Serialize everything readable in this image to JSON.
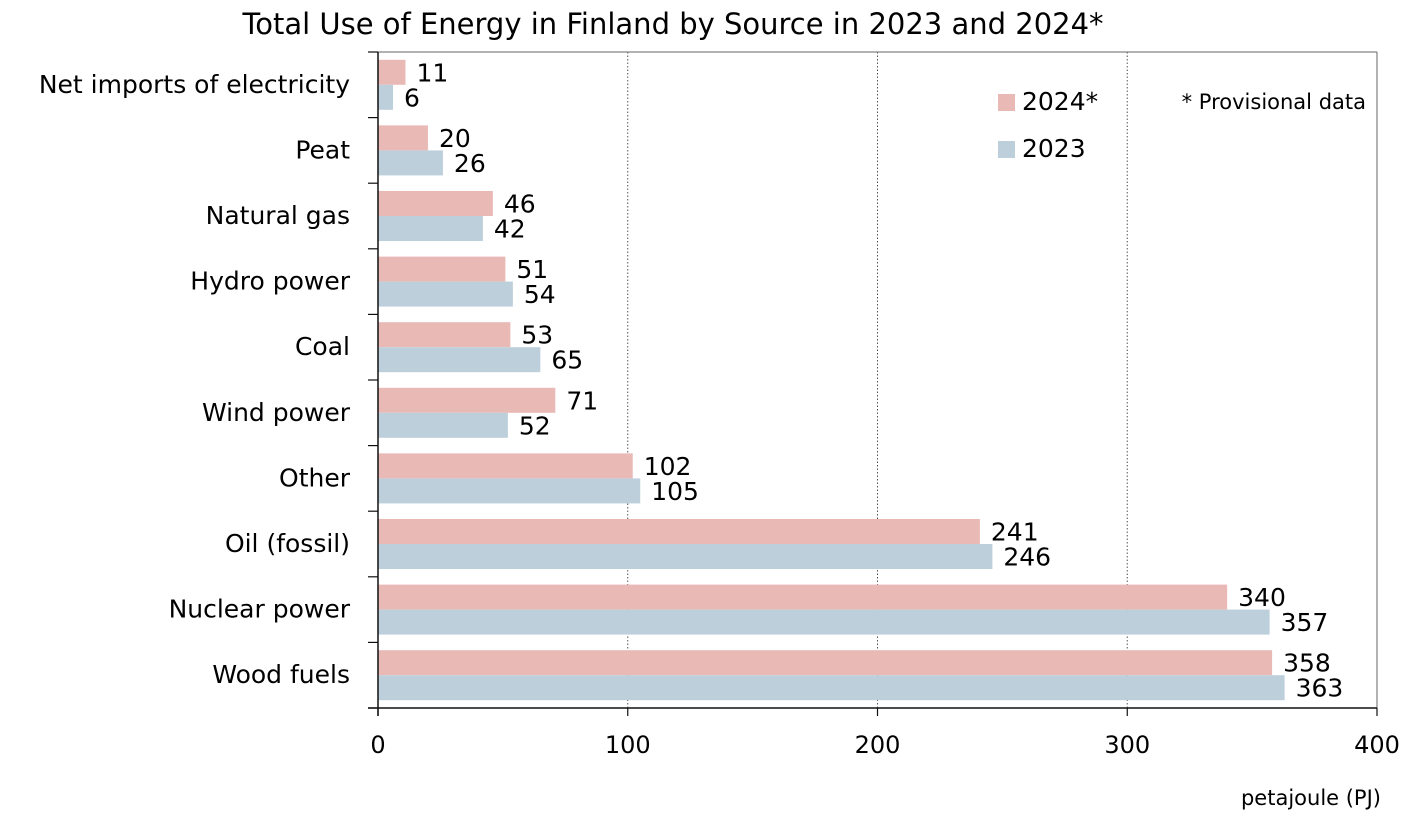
{
  "chart_data": {
    "type": "bar",
    "orientation": "horizontal",
    "title": "Total Use of Energy in Finland by Source in 2023 and 2024*",
    "note": "* Provisional data",
    "xlabel": "petajoule (PJ)",
    "ylabel": "",
    "xlim": [
      0,
      400
    ],
    "xticks": [
      0,
      100,
      200,
      300,
      400
    ],
    "grid": "vertical dotted at 100, 200, 300",
    "legend_position": "top-right",
    "categories": [
      "Net imports of electricity",
      "Peat",
      "Natural gas",
      "Hydro power",
      "Coal",
      "Wind power",
      "Other",
      "Oil (fossil)",
      "Nuclear power",
      "Wood fuels"
    ],
    "series": [
      {
        "name": "2024*",
        "color": "#e9b9b6",
        "values": [
          11,
          20,
          46,
          51,
          53,
          71,
          102,
          241,
          340,
          358
        ]
      },
      {
        "name": "2023",
        "color": "#bccfdb",
        "values": [
          6,
          26,
          42,
          54,
          65,
          52,
          105,
          246,
          357,
          363
        ]
      }
    ]
  }
}
